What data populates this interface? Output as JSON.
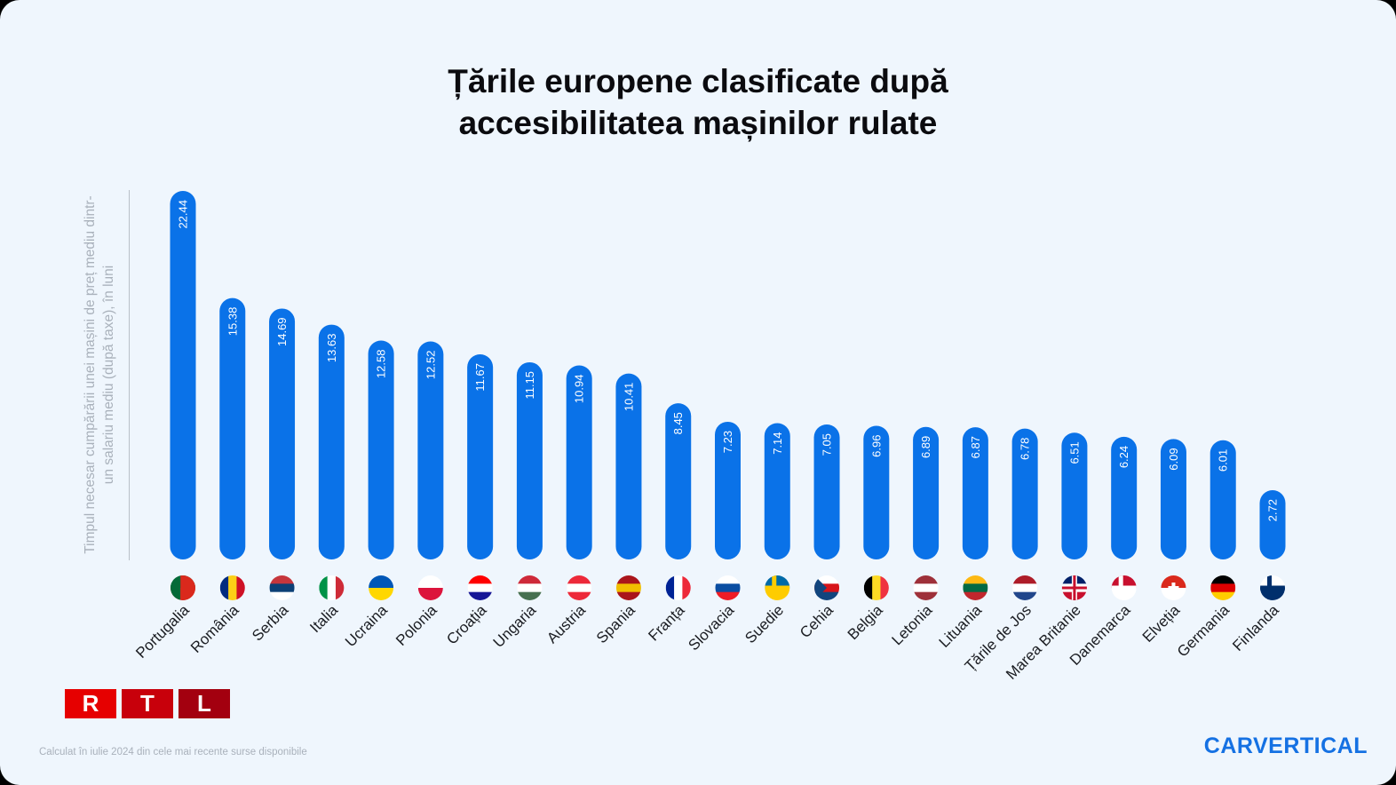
{
  "chart_data": {
    "type": "bar",
    "title": "Țările europene clasificate după accesibilitatea mașinilor rulate",
    "title_lines": [
      "Țările europene clasificate după",
      "accesibilitatea mașinilor rulate"
    ],
    "ylabel": "Timpul necesar cumpărării unei mașini de preț mediu dintr-un salariu mediu (după taxe), în luni",
    "xlabel": "",
    "categories": [
      "Portugalia",
      "România",
      "Serbia",
      "Italia",
      "Ucraina",
      "Polonia",
      "Croația",
      "Ungaria",
      "Austria",
      "Spania",
      "Franța",
      "Slovacia",
      "Suedie",
      "Cehia",
      "Belgia",
      "Letonia",
      "Lituania",
      "Țările de Jos",
      "Marea Britanie",
      "Danemarca",
      "Elveția",
      "Germania",
      "Finlanda"
    ],
    "values": [
      22.44,
      15.38,
      14.69,
      13.63,
      12.58,
      12.52,
      11.67,
      11.15,
      10.94,
      10.41,
      8.45,
      7.23,
      7.14,
      7.05,
      6.96,
      6.89,
      6.87,
      6.78,
      6.51,
      6.24,
      6.09,
      6.01,
      2.72
    ],
    "value_labels": [
      "22.44",
      "15.38",
      "14.69",
      "13.63",
      "12.58",
      "12.52",
      "11.67",
      "11.15",
      "10.94",
      "10.41",
      "8.45",
      "7.23",
      "7.14",
      "7.05",
      "6.96",
      "6.89",
      "6.87",
      "6.78",
      "6.51",
      "6.24",
      "6.09",
      "6.01",
      "2.72"
    ],
    "flags": [
      [
        "#046a38",
        "#da291c"
      ],
      [
        "#002b7f",
        "#fcd116",
        "#ce1126"
      ],
      [
        "#c6363c",
        "#0c4076",
        "#ffffff"
      ],
      [
        "#009246",
        "#ffffff",
        "#ce2b37"
      ],
      [
        "#0057b7",
        "#ffd700"
      ],
      [
        "#ffffff",
        "#dc143c"
      ],
      [
        "#ff0000",
        "#ffffff",
        "#171796"
      ],
      [
        "#ce2939",
        "#ffffff",
        "#477050"
      ],
      [
        "#ed2939",
        "#ffffff",
        "#ed2939"
      ],
      [
        "#aa151b",
        "#f1bf00",
        "#aa151b"
      ],
      [
        "#002395",
        "#ffffff",
        "#ed2939"
      ],
      [
        "#ffffff",
        "#0b4ea2",
        "#ee1c25"
      ],
      [
        "#006aa7",
        "#fecc00"
      ],
      [
        "#ffffff",
        "#d7141a",
        "#11457e"
      ],
      [
        "#000000",
        "#fdda24",
        "#ef3340"
      ],
      [
        "#9e3039",
        "#ffffff",
        "#9e3039"
      ],
      [
        "#fdb913",
        "#006a44",
        "#c1272d"
      ],
      [
        "#ae1c28",
        "#ffffff",
        "#21468b"
      ],
      [
        "#012169",
        "#ffffff",
        "#c8102e"
      ],
      [
        "#c8102e",
        "#ffffff"
      ],
      [
        "#da291c",
        "#ffffff"
      ],
      [
        "#000000",
        "#dd0000",
        "#ffce00"
      ],
      [
        "#ffffff",
        "#002f6c"
      ]
    ],
    "bar_color": "#0a72e8",
    "grid": false,
    "legend": "none"
  },
  "footnote": "Calculat în iulie 2024 din cele mai recente surse disponibile",
  "brand": "CARVERTICAL",
  "rtl": [
    "R",
    "T",
    "L"
  ]
}
